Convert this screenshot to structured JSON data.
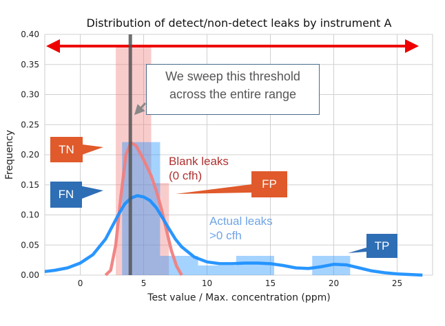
{
  "chart_data": {
    "type": "histogram",
    "title": "Distribution of detect/non-detect leaks by instrument A",
    "xlabel": "Test value / Max. concentration (ppm)",
    "ylabel": "Frequency",
    "xlim": [
      -2.8,
      27.8
    ],
    "ylim": [
      0,
      0.4
    ],
    "x_ticks": [
      "0",
      "5",
      "10",
      "15",
      "20",
      "25"
    ],
    "y_ticks": [
      "0.00",
      "0.05",
      "0.10",
      "0.15",
      "0.20",
      "0.25",
      "0.30",
      "0.35",
      "0.40"
    ],
    "grid": true,
    "series": [
      {
        "name": "Blank leaks (0 cfh)",
        "color": "#f08080",
        "bins": [
          {
            "x0": 2.8,
            "x1": 5.6,
            "height": 0.382
          },
          {
            "x0": 5.6,
            "x1": 7.0,
            "height": 0.153
          }
        ],
        "kde": [
          [
            2.0,
            0.0
          ],
          [
            2.4,
            0.008
          ],
          [
            2.8,
            0.05
          ],
          [
            3.2,
            0.13
          ],
          [
            3.6,
            0.2
          ],
          [
            4.0,
            0.22
          ],
          [
            4.4,
            0.215
          ],
          [
            4.8,
            0.2
          ],
          [
            5.2,
            0.183
          ],
          [
            5.6,
            0.165
          ],
          [
            6.0,
            0.14
          ],
          [
            6.4,
            0.11
          ],
          [
            6.8,
            0.075
          ],
          [
            7.2,
            0.04
          ],
          [
            7.6,
            0.015
          ],
          [
            8.0,
            0.0
          ]
        ]
      },
      {
        "name": "Actual leaks >0 cfh",
        "color": "#1e90ff",
        "bins": [
          {
            "x0": 3.3,
            "x1": 6.3,
            "height": 0.221
          },
          {
            "x0": 6.3,
            "x1": 9.3,
            "height": 0.032
          },
          {
            "x0": 9.3,
            "x1": 12.3,
            "height": 0.016
          },
          {
            "x0": 12.3,
            "x1": 15.3,
            "height": 0.032
          },
          {
            "x0": 18.3,
            "x1": 21.3,
            "height": 0.032
          }
        ],
        "kde": [
          [
            -2.8,
            0.006
          ],
          [
            -2.0,
            0.008
          ],
          [
            -1.0,
            0.012
          ],
          [
            0.0,
            0.02
          ],
          [
            1.0,
            0.034
          ],
          [
            2.0,
            0.06
          ],
          [
            2.5,
            0.08
          ],
          [
            3.0,
            0.1
          ],
          [
            3.5,
            0.118
          ],
          [
            4.0,
            0.128
          ],
          [
            4.5,
            0.132
          ],
          [
            5.0,
            0.13
          ],
          [
            5.5,
            0.124
          ],
          [
            6.0,
            0.112
          ],
          [
            6.5,
            0.095
          ],
          [
            7.0,
            0.077
          ],
          [
            7.5,
            0.06
          ],
          [
            8.0,
            0.047
          ],
          [
            9.0,
            0.03
          ],
          [
            10.0,
            0.022
          ],
          [
            11.0,
            0.019
          ],
          [
            12.0,
            0.019
          ],
          [
            13.0,
            0.02
          ],
          [
            14.0,
            0.02
          ],
          [
            15.0,
            0.019
          ],
          [
            16.0,
            0.016
          ],
          [
            17.0,
            0.012
          ],
          [
            18.0,
            0.011
          ],
          [
            19.0,
            0.014
          ],
          [
            20.0,
            0.018
          ],
          [
            21.0,
            0.017
          ],
          [
            22.0,
            0.012
          ],
          [
            23.0,
            0.007
          ],
          [
            24.0,
            0.004
          ],
          [
            25.0,
            0.002
          ],
          [
            26.0,
            0.001
          ],
          [
            27.0,
            0.0
          ]
        ]
      }
    ],
    "threshold_x": 3.95
  },
  "annotations": {
    "threshold_note": [
      "We sweep this threshold",
      "across the entire range"
    ],
    "blank_label": [
      "Blank leaks",
      "(0 cfh)"
    ],
    "actual_label": [
      "Actual leaks",
      ">0 cfh"
    ],
    "tn": "TN",
    "fn": "FN",
    "fp": "FP",
    "tp": "TP"
  },
  "colors": {
    "tn": "#e05a2b",
    "fp": "#e05a2b",
    "fn": "#2e6eb5",
    "tp": "#2e6eb5",
    "blank_text": "#b03030",
    "actual_text": "#6fa4e6",
    "range_arrow": "#ee0000",
    "threshold_line": "#555555"
  }
}
